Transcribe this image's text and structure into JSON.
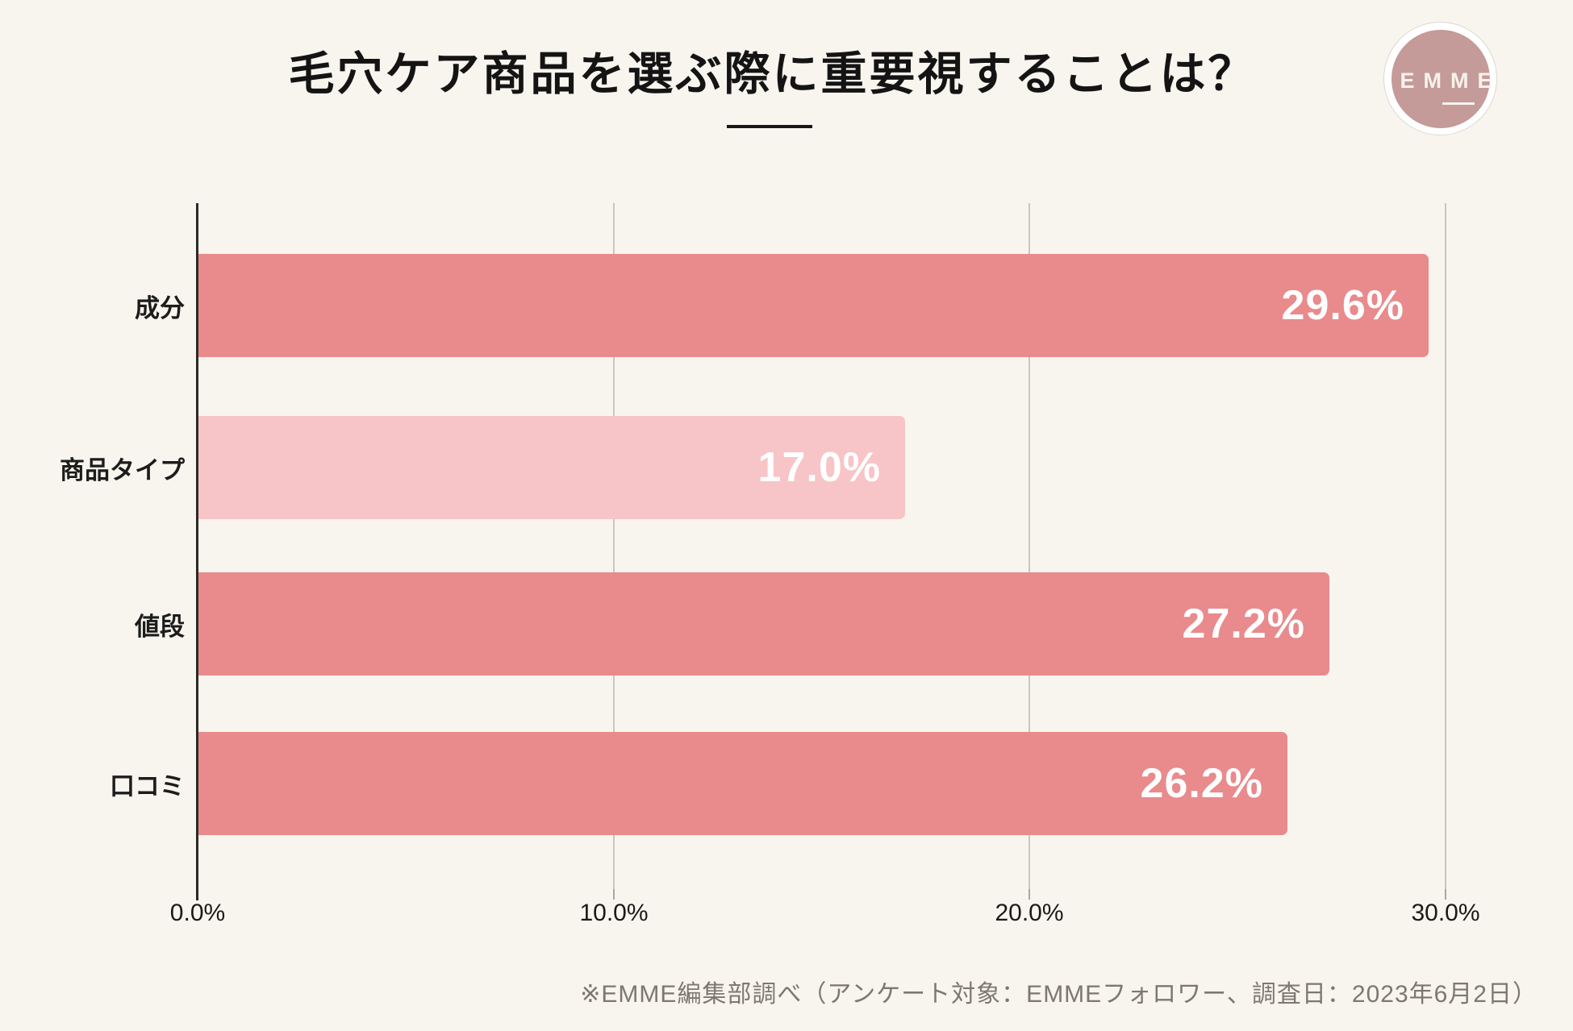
{
  "header": {
    "title": "毛穴ケア商品を選ぶ際に重要視することは？",
    "logo_text": "EMME"
  },
  "chart_data": {
    "type": "bar",
    "orientation": "horizontal",
    "title": "毛穴ケア商品を選ぶ際に重要視することは？",
    "categories": [
      "成分",
      "商品タイプ",
      "値段",
      "口コミ"
    ],
    "values": [
      29.6,
      17.0,
      27.2,
      26.2
    ],
    "xlabel": "",
    "ylabel": "",
    "xlim": [
      0,
      31.9
    ],
    "grid": "vertical gridlines at 10%, 20%, 30%",
    "legend": "none",
    "xticks": [
      {
        "value": 0,
        "label": "0.0%"
      },
      {
        "value": 10,
        "label": "10.0%"
      },
      {
        "value": 20,
        "label": "20.0%"
      },
      {
        "value": 30,
        "label": "30.0%"
      }
    ],
    "bars": [
      {
        "label": "成分",
        "value": 29.6,
        "display": "29.6%",
        "color_key": "salmon"
      },
      {
        "label": "商品タイプ",
        "value": 17.0,
        "display": "17.0%",
        "color_key": "light_pink"
      },
      {
        "label": "値段",
        "value": 27.2,
        "display": "27.2%",
        "color_key": "salmon"
      },
      {
        "label": "口コミ",
        "value": 26.2,
        "display": "26.2%",
        "color_key": "salmon"
      }
    ]
  },
  "footer": {
    "note": "※EMME編集部調べ（アンケート対象：EMMEフォロワー、調査日：2023年6月2日）"
  },
  "colors": {
    "background": "#f8f5ee",
    "bar_salmon": "#e98a8c",
    "bar_light_pink": "#f7c4c7",
    "value_text": "#ffffff",
    "gridline": "#c9c6c0",
    "axis": "#2b2a27",
    "title_text": "#141414",
    "footer_text": "#7c7870",
    "logo_circle": "#c49b99",
    "logo_text": "#f7f3ec"
  }
}
